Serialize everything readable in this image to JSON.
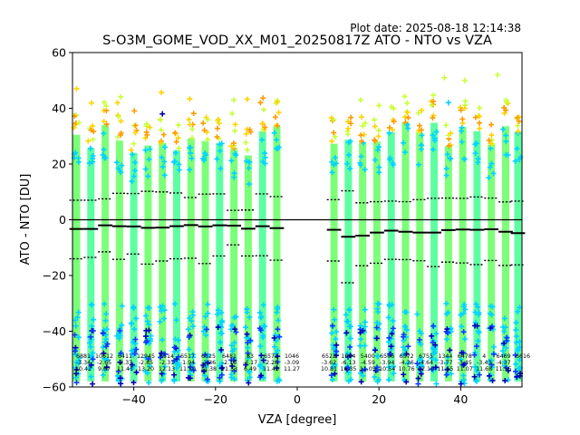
{
  "chart_data": {
    "type": "scatter",
    "title": "S-O3M_GOME_VOD_XX_M01_20250817Z ATO - NTO vs VZA",
    "plot_date": "Plot date: 2025-08-18 12:14:38",
    "xlabel": "VZA [degree]",
    "ylabel": "ATO - NTO [DU]",
    "xlim": [
      -55,
      55
    ],
    "ylim": [
      -60,
      60
    ],
    "xticks": [
      -40,
      -20,
      0,
      20,
      40
    ],
    "yticks": [
      -60,
      -40,
      -20,
      0,
      20,
      40,
      60
    ],
    "bin_centers": [
      -54,
      -50.5,
      -47,
      -43.5,
      -40,
      -36.5,
      -33,
      -29.5,
      -26,
      -22.5,
      -19,
      -15.5,
      -12,
      -8.5,
      -5,
      9,
      12.5,
      16,
      19.5,
      23,
      26.5,
      30,
      33.5,
      37,
      40.5,
      44,
      47.5,
      51,
      54
    ],
    "mean": [
      -3.3,
      -3.3,
      -2.0,
      -2.3,
      -2.4,
      -2.9,
      -2.8,
      -2.3,
      -1.9,
      -2.4,
      -2.0,
      -2.1,
      -3.2,
      -2.3,
      -3.0,
      -3.6,
      -6.1,
      -5.7,
      -4.6,
      -3.9,
      -4.3,
      -4.6,
      -4.6,
      -3.7,
      -3.5,
      -3.6,
      -3.4,
      -4.3,
      -4.8
    ],
    "sd_upper": [
      7.0,
      7.0,
      7.5,
      9.5,
      9.4,
      10.2,
      10.0,
      9.6,
      8.0,
      9.2,
      9.3,
      3.4,
      3.5,
      9.3,
      8.3,
      7.2,
      10.4,
      6.1,
      6.5,
      6.7,
      6.5,
      7.2,
      7.7,
      7.8,
      7.7,
      8.2,
      7.8,
      6.4,
      6.7
    ],
    "sd_lower": [
      -14.0,
      -13.5,
      -11.5,
      -14.2,
      -12.3,
      -15.9,
      -14.8,
      -14.0,
      -13.8,
      -15.7,
      -13.0,
      -9.0,
      -13.0,
      -12.9,
      -14.5,
      -14.8,
      -22.6,
      -16.5,
      -15.6,
      -14.2,
      -14.3,
      -14.7,
      -16.8,
      -15.2,
      -15.5,
      -16.1,
      -14.6,
      -16.4,
      -16.2
    ],
    "n_labels": [
      "6881",
      "10612",
      "6411",
      "12945",
      "6514",
      "6517",
      "6525",
      "6481",
      "83",
      "6572",
      "1046",
      "6522",
      "1664",
      "5400",
      "6566",
      "6572",
      "6755",
      "1344",
      "6478",
      "4",
      "6469",
      "6616"
    ],
    "mean_labels": [
      "-3.34",
      "-2.65",
      "-2.37",
      "-2.85",
      "-2.31",
      "-1.94",
      "-2.36",
      "-2.13",
      "-3.17",
      "-2.28",
      "-3.09",
      "-3.62",
      "-6.13",
      "-4.59",
      "-3.94",
      "-4.26",
      "-4.64",
      "-3.77",
      "-3.45",
      "-3.43",
      "-4.37"
    ],
    "sd_labels": [
      "10.42",
      "9.67",
      "11.45",
      "13.20",
      "12.13",
      "11.50",
      "11.38",
      "11.33",
      "6.49",
      "11.43",
      "11.27",
      "10.81",
      "16.35",
      "11.05",
      "10.54",
      "10.76",
      "12.10",
      "11.65",
      "11.07",
      "11.68",
      "11.55"
    ],
    "colors": {
      "dense": "#7cff79",
      "dense_alt": "#5effa0",
      "mid": "#00d4ff",
      "low": "#0a3cff",
      "very_low": "#0000b4",
      "high": "#c8ff37",
      "higher": "#ffd400",
      "highest": "#ff9a00",
      "mean_line": "#000000"
    }
  }
}
